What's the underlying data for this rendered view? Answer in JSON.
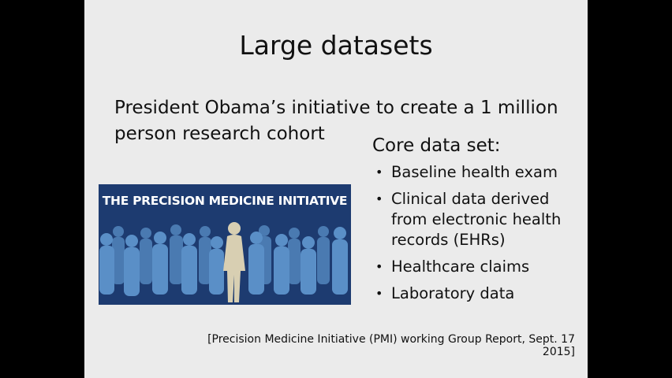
{
  "slide": {
    "title": "Large datasets",
    "intro": "President Obama’s initiative to create a 1 million person research cohort",
    "core_heading": "Core data set:",
    "bullets": [
      "Baseline health exam",
      "Clinical data derived from electronic health records (EHRs)",
      "Healthcare claims",
      "Laboratory data"
    ],
    "banner_text": "THE PRECISION MEDICINE INITIATIVE",
    "citation": "[Precision Medicine Initiative (PMI) working Group Report, Sept. 17 2015]"
  },
  "colors": {
    "banner_bg": "#1d3b70",
    "people": "#5a8fc7",
    "featured_person": "#d8cfb2"
  }
}
